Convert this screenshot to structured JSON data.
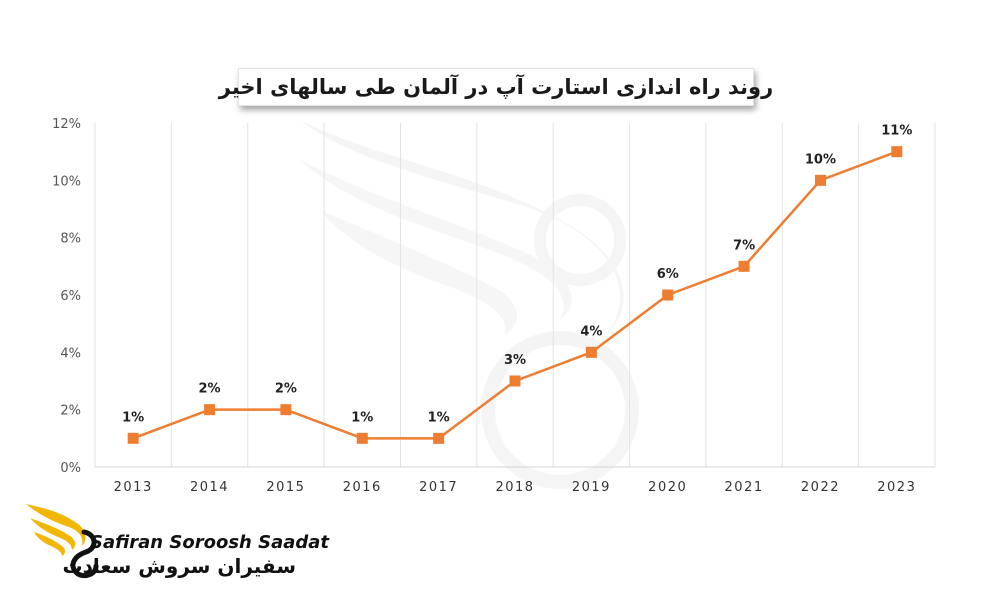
{
  "chart_data": {
    "type": "line",
    "title": "روند راه اندازی استارت آپ در آلمان طی سالهای اخیر",
    "categories": [
      "2013",
      "2014",
      "2015",
      "2016",
      "2017",
      "2018",
      "2019",
      "2020",
      "2021",
      "2022",
      "2023"
    ],
    "series": [
      {
        "values": [
          1,
          2,
          2,
          1,
          1,
          3,
          4,
          6,
          7,
          10,
          11
        ],
        "labels": [
          "1%",
          "2%",
          "2%",
          "1%",
          "1%",
          "3%",
          "4%",
          "6%",
          "7%",
          "10%",
          "11%"
        ],
        "color": "#ed7d31"
      }
    ],
    "ylim": [
      0,
      12
    ],
    "yticks": [
      "0%",
      "2%",
      "4%",
      "6%",
      "8%",
      "10%",
      "12%"
    ],
    "grid": "vertical",
    "marker": "square"
  },
  "logo": {
    "name_en": "Safiran Soroosh Saadat",
    "name_fa": "سفیران سروش سعادت",
    "color": "#f2b705"
  }
}
